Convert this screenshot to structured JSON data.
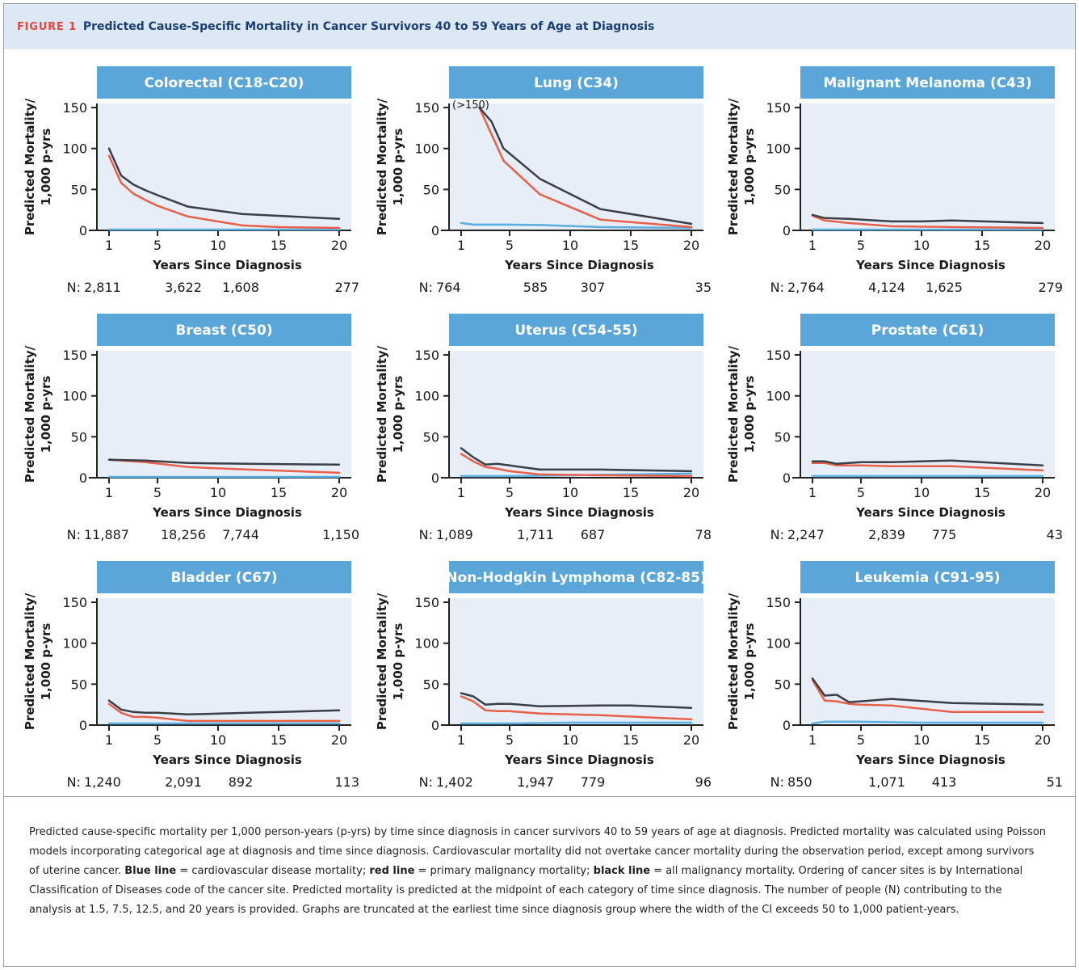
{
  "figure": {
    "label": "FIGURE 1",
    "title": "Predicted Cause-Specific Mortality in Cancer Survivors 40 to 59 Years of Age at Diagnosis"
  },
  "axes": {
    "ylabel_line1": "Predicted Mortality/",
    "ylabel_line2": "1,000 p-yrs",
    "xlabel": "Years Since Diagnosis",
    "yticks": [
      0,
      50,
      100,
      150
    ],
    "xticks": [
      1,
      5,
      10,
      15,
      20
    ],
    "xlim": [
      0,
      21
    ],
    "ylim": [
      0,
      155
    ],
    "n_prefix": "N:"
  },
  "colors": {
    "panel_header": "#5aa6d9",
    "plot_bg": "#e7eef8",
    "cardiovascular": "#5aaee0",
    "primary": "#e8604a",
    "all_malignancy": "#3a3f47"
  },
  "chart_data": [
    {
      "type": "line",
      "title": "Colorectal (C18-C20)",
      "series": [
        {
          "key": "all_malignancy",
          "x": [
            1,
            2,
            3,
            4,
            5,
            7.5,
            12,
            20
          ],
          "y": [
            100,
            67,
            56,
            49,
            43,
            29,
            20,
            14
          ]
        },
        {
          "key": "primary",
          "x": [
            1,
            2,
            3,
            4,
            5,
            7.5,
            12,
            15,
            20
          ],
          "y": [
            91,
            58,
            45,
            37,
            30,
            17,
            6,
            4,
            3
          ]
        },
        {
          "key": "cardiovascular",
          "x": [
            1,
            5,
            10,
            20
          ],
          "y": [
            1,
            1,
            1,
            1
          ]
        }
      ],
      "n_values": [
        "2,811",
        "3,622",
        "1,608",
        "277"
      ]
    },
    {
      "type": "line",
      "title": "Lung (C34)",
      "annotation": "(>150)",
      "series": [
        {
          "key": "all_malignancy",
          "x": [
            2.5,
            3.5,
            4.5,
            7.5,
            12.5,
            20
          ],
          "y": [
            150,
            133,
            100,
            63,
            26,
            8
          ]
        },
        {
          "key": "primary",
          "x": [
            2.5,
            4.5,
            7.5,
            12.5,
            20
          ],
          "y": [
            150,
            85,
            44,
            13,
            4
          ]
        },
        {
          "key": "cardiovascular",
          "x": [
            1,
            2,
            5,
            7.5,
            12.5,
            20
          ],
          "y": [
            9,
            7,
            7,
            6.5,
            4,
            3
          ]
        }
      ],
      "n_values": [
        "764",
        "585",
        "307",
        "35"
      ]
    },
    {
      "type": "line",
      "title": "Malignant Melanoma (C43)",
      "series": [
        {
          "key": "all_malignancy",
          "x": [
            1,
            2,
            4,
            7.5,
            10,
            12.5,
            20
          ],
          "y": [
            19,
            15,
            14,
            11,
            11,
            12,
            9
          ]
        },
        {
          "key": "primary",
          "x": [
            1,
            2,
            4,
            7.5,
            12.5,
            20
          ],
          "y": [
            18,
            12,
            9,
            5,
            4,
            3
          ]
        },
        {
          "key": "cardiovascular",
          "x": [
            1,
            5,
            10,
            20
          ],
          "y": [
            1,
            1,
            1,
            1
          ]
        }
      ],
      "n_values": [
        "2,764",
        "4,124",
        "1,625",
        "279"
      ]
    },
    {
      "type": "line",
      "title": "Breast (C50)",
      "series": [
        {
          "key": "all_malignancy",
          "x": [
            1,
            4,
            7.5,
            12.5,
            20
          ],
          "y": [
            22,
            21,
            18,
            17,
            16
          ]
        },
        {
          "key": "primary",
          "x": [
            1,
            4,
            7.5,
            12.5,
            20
          ],
          "y": [
            22,
            19,
            13,
            10,
            6
          ]
        },
        {
          "key": "cardiovascular",
          "x": [
            1,
            5,
            10,
            20
          ],
          "y": [
            1,
            1,
            1,
            1
          ]
        }
      ],
      "n_values": [
        "11,887",
        "18,256",
        "7,744",
        "1,150"
      ]
    },
    {
      "type": "line",
      "title": "Uterus (C54-55)",
      "series": [
        {
          "key": "all_malignancy",
          "x": [
            1,
            2,
            3,
            4,
            5,
            7.5,
            12.5,
            20
          ],
          "y": [
            36,
            25,
            16,
            17,
            15,
            10,
            10,
            8
          ]
        },
        {
          "key": "primary",
          "x": [
            1,
            2,
            3,
            4,
            5,
            7.5,
            12.5,
            20
          ],
          "y": [
            29,
            20,
            13,
            11,
            8,
            4,
            3,
            2
          ]
        },
        {
          "key": "cardiovascular",
          "x": [
            1,
            5,
            10,
            15,
            20
          ],
          "y": [
            2,
            2,
            3,
            4,
            5
          ]
        }
      ],
      "n_values": [
        "1,089",
        "1,711",
        "687",
        "78"
      ]
    },
    {
      "type": "line",
      "title": "Prostate (C61)",
      "series": [
        {
          "key": "all_malignancy",
          "x": [
            1,
            2,
            3,
            4,
            5,
            7.5,
            10,
            12.5,
            20
          ],
          "y": [
            20,
            20,
            17,
            18,
            19,
            19,
            20,
            21,
            15
          ]
        },
        {
          "key": "primary",
          "x": [
            1,
            2,
            3,
            4,
            5,
            7.5,
            12.5,
            20
          ],
          "y": [
            18,
            18,
            15,
            15,
            15,
            14,
            14,
            9
          ]
        },
        {
          "key": "cardiovascular",
          "x": [
            1,
            5,
            10,
            20
          ],
          "y": [
            2,
            2,
            2,
            2
          ]
        }
      ],
      "n_values": [
        "2,247",
        "2,839",
        "775",
        "43"
      ]
    },
    {
      "type": "line",
      "title": "Bladder (C67)",
      "series": [
        {
          "key": "all_malignancy",
          "x": [
            1,
            2,
            3,
            4,
            5,
            7.5,
            12.5,
            20
          ],
          "y": [
            30,
            19,
            16,
            15,
            15,
            13,
            15,
            18
          ]
        },
        {
          "key": "primary",
          "x": [
            1,
            2,
            3,
            4,
            5,
            7.5,
            12.5,
            20
          ],
          "y": [
            26,
            15,
            10,
            10,
            9,
            5,
            5,
            5
          ]
        },
        {
          "key": "cardiovascular",
          "x": [
            1,
            5,
            10,
            20
          ],
          "y": [
            2,
            2,
            2,
            2
          ]
        }
      ],
      "n_values": [
        "1,240",
        "2,091",
        "892",
        "113"
      ]
    },
    {
      "type": "line",
      "title": "Non-Hodgkin Lymphoma (C82-85)",
      "series": [
        {
          "key": "all_malignancy",
          "x": [
            1,
            2,
            3,
            4,
            5,
            7.5,
            12.5,
            15,
            20
          ],
          "y": [
            39,
            35,
            25,
            26,
            26,
            23,
            24,
            24,
            21
          ]
        },
        {
          "key": "primary",
          "x": [
            1,
            2,
            3,
            4,
            5,
            7.5,
            12.5,
            20
          ],
          "y": [
            35,
            29,
            18,
            17,
            17,
            14,
            12,
            7
          ]
        },
        {
          "key": "cardiovascular",
          "x": [
            1,
            5,
            10,
            20
          ],
          "y": [
            2,
            2,
            3,
            3
          ]
        }
      ],
      "n_values": [
        "1,402",
        "1,947",
        "779",
        "96"
      ]
    },
    {
      "type": "line",
      "title": "Leukemia (C91-95)",
      "series": [
        {
          "key": "all_malignancy",
          "x": [
            1,
            2,
            3,
            4,
            5,
            7.5,
            12.5,
            20
          ],
          "y": [
            57,
            36,
            37,
            28,
            29,
            32,
            27,
            25
          ]
        },
        {
          "key": "primary",
          "x": [
            1,
            2,
            3,
            4,
            5,
            7.5,
            12.5,
            20
          ],
          "y": [
            55,
            30,
            29,
            26,
            25,
            24,
            16,
            16
          ]
        },
        {
          "key": "cardiovascular",
          "x": [
            1,
            2,
            5,
            10,
            20
          ],
          "y": [
            2,
            4,
            4,
            3,
            3
          ]
        }
      ],
      "n_values": [
        "850",
        "1,071",
        "413",
        "51"
      ]
    }
  ],
  "caption": {
    "intro": "Predicted cause-specific mortality per 1,000 person-years (p-yrs) by time since diagnosis in cancer survivors 40 to 59 years of age at diagnosis. Predicted mortality was calculated using Poisson models incorporating categorical age at diagnosis and time since diagnosis. Cardiovascular mortality did not overtake cancer mortality during the observation period, except among survivors of uterine cancer. ",
    "blue_label": "Blue line",
    "blue_text": " = cardiovascular disease mortality; ",
    "red_label": "red line",
    "red_text": " = primary malignancy mortality; ",
    "black_label": "black line",
    "black_text": " = all malignancy mortality. Ordering of cancer sites is by International Classification of Diseases code of the cancer site. Predicted mortality is predicted at the midpoint of each category of time since diagnosis. The number of people (N) contributing to the analysis at 1.5, 7.5, 12.5, and 20 years is provided. Graphs are truncated at the earliest time since diagnosis group where the width of the CI exceeds 50 to 1,000 patient-years."
  }
}
